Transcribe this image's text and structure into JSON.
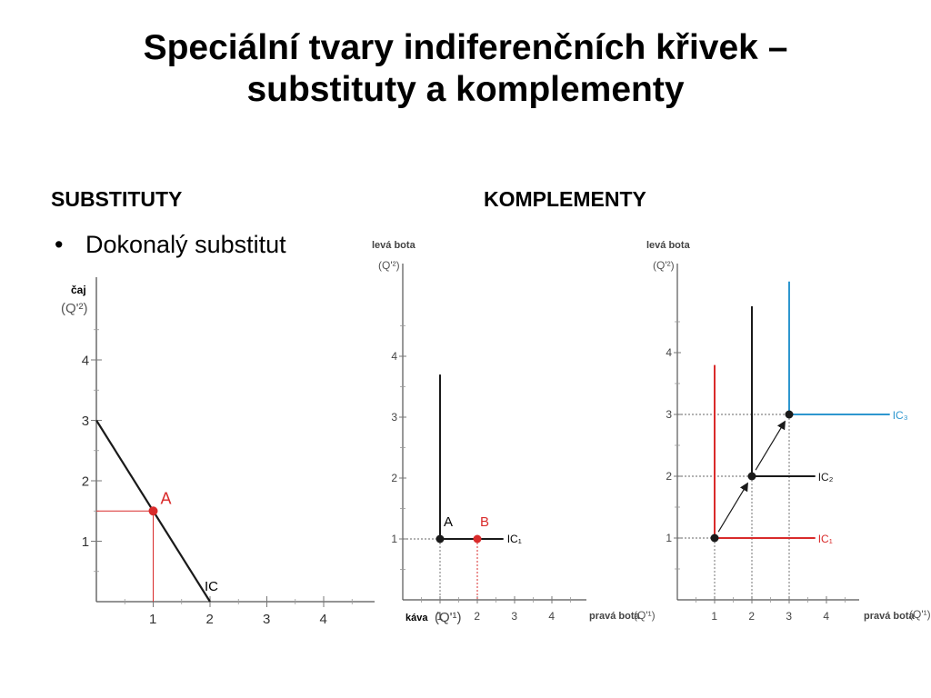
{
  "slide": {
    "title_line1": "Speciální tvary indiferenčních křivek –",
    "title_line2": "substituty a komplementy",
    "heading_left": "SUBSTITUTY",
    "heading_right": "KOMPLEMENTY",
    "bullet": "Dokonalý substitut"
  },
  "colors": {
    "red": "#d92b2b",
    "blue": "#2e97cf",
    "black": "#1a1a1a"
  },
  "chart_data": [
    {
      "type": "line",
      "panel": "substituty",
      "ylabel_name": "čaj",
      "ylabel_unit": "(Q'²)",
      "xlabel": "",
      "xticks": [
        1,
        2,
        3,
        4
      ],
      "yticks": [
        1,
        2,
        3,
        4
      ],
      "xlim": [
        0,
        4.6
      ],
      "ylim": [
        0,
        4.6
      ],
      "series": [
        {
          "name": "IC",
          "points": [
            [
              0,
              3
            ],
            [
              2,
              0
            ]
          ],
          "color": "black"
        }
      ],
      "highlight": {
        "label": "A",
        "x": 1,
        "y": 1.5,
        "color": "red"
      }
    },
    {
      "type": "line",
      "panel": "komplementy-1",
      "ylabel_name": "levá bota",
      "ylabel_unit": "(Q'²)",
      "xlabel_left": "káva",
      "xlabel_unit_left": "(Q'¹)",
      "xlabel": "pravá bota",
      "xlabel_unit": "(Q'¹)",
      "xticks": [
        1,
        2,
        3,
        4
      ],
      "yticks": [
        1,
        2,
        3,
        4
      ],
      "xlim": [
        0,
        5.2
      ],
      "ylim": [
        0,
        5.6
      ],
      "series": [
        {
          "name": "IC₁",
          "points": [
            [
              1,
              3.7
            ],
            [
              1,
              1
            ],
            [
              2.7,
              1
            ]
          ],
          "color": "black"
        }
      ],
      "points": [
        {
          "label": "A",
          "x": 1,
          "y": 1,
          "color": "black"
        },
        {
          "label": "B",
          "x": 2,
          "y": 1,
          "color": "red"
        }
      ]
    },
    {
      "type": "line",
      "panel": "komplementy-2",
      "ylabel_name": "levá bota",
      "ylabel_unit": "(Q'²)",
      "xlabel": "pravá bota",
      "xlabel_unit": "(Q'¹)",
      "xticks": [
        1,
        2,
        3,
        4
      ],
      "yticks": [
        1,
        2,
        3,
        4
      ],
      "xlim": [
        0,
        5.7
      ],
      "ylim": [
        0,
        5.4
      ],
      "series": [
        {
          "name": "IC₁",
          "corner": [
            1,
            1
          ],
          "top": 3.8,
          "right": 3.7,
          "color": "red"
        },
        {
          "name": "IC₂",
          "corner": [
            2,
            2
          ],
          "top": 4.75,
          "right": 3.7,
          "color": "black"
        },
        {
          "name": "IC₃",
          "corner": [
            3,
            3
          ],
          "top": 5.15,
          "right": 5.7,
          "color": "blue"
        }
      ]
    }
  ]
}
